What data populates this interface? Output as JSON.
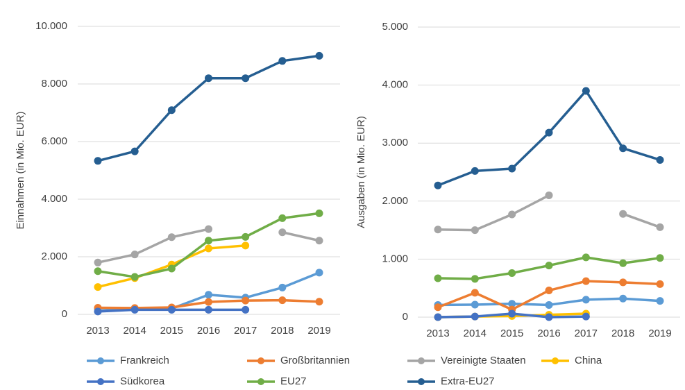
{
  "chart_data": [
    {
      "type": "line",
      "y_label": "Einnahmen (in Mio. EUR)",
      "categories": [
        "2013",
        "2014",
        "2015",
        "2016",
        "2017",
        "2018",
        "2019"
      ],
      "ylim": [
        0,
        10000
      ],
      "yticks": [
        0,
        {
          "value": 2000,
          "label": "2.000"
        },
        {
          "value": 4000,
          "label": "4.000"
        },
        {
          "value": 6000,
          "label": "6.000"
        },
        {
          "value": 8000,
          "label": "8.000"
        },
        {
          "value": 10000,
          "label": "10.000"
        }
      ],
      "grid": true,
      "series": [
        {
          "name": "Frankreich",
          "color": "#5b9bd5",
          "values": [
            200,
            200,
            200,
            680,
            580,
            930,
            1450
          ]
        },
        {
          "name": "Großbritannien",
          "color": "#ed7d31",
          "values": [
            230,
            220,
            240,
            430,
            480,
            490,
            440
          ]
        },
        {
          "name": "Vereinigte Staaten",
          "color": "#a5a5a5",
          "values": [
            1800,
            2080,
            2680,
            2960,
            null,
            2850,
            2560
          ]
        },
        {
          "name": "China",
          "color": "#ffc000",
          "values": [
            950,
            1260,
            1730,
            2290,
            2390,
            null,
            null
          ]
        },
        {
          "name": "Südkorea",
          "color": "#4472c4",
          "values": [
            100,
            160,
            160,
            160,
            160,
            null,
            null
          ]
        },
        {
          "name": "EU27",
          "color": "#70ad47",
          "values": [
            1500,
            1300,
            1590,
            2560,
            2690,
            3340,
            3510
          ]
        },
        {
          "name": "Extra-EU27",
          "color": "#255e91",
          "values": [
            5330,
            5660,
            7090,
            8200,
            8200,
            8800,
            8980
          ]
        }
      ]
    },
    {
      "type": "line",
      "y_label": "Ausgaben (in Mio. EUR)",
      "categories": [
        "2013",
        "2014",
        "2015",
        "2016",
        "2017",
        "2018",
        "2019"
      ],
      "ylim": [
        0,
        5000
      ],
      "yticks": [
        0,
        {
          "value": 1000,
          "label": "1.000"
        },
        {
          "value": 2000,
          "label": "2.000"
        },
        {
          "value": 3000,
          "label": "3.000"
        },
        {
          "value": 4000,
          "label": "4.000"
        },
        {
          "value": 5000,
          "label": "5.000"
        }
      ],
      "grid": true,
      "series": [
        {
          "color": "#5b9bd5",
          "values": [
            210,
            215,
            230,
            210,
            300,
            320,
            280
          ]
        },
        {
          "color": "#ed7d31",
          "values": [
            170,
            420,
            130,
            460,
            620,
            600,
            570
          ]
        },
        {
          "color": "#a5a5a5",
          "values": [
            1510,
            1500,
            1770,
            2100,
            null,
            1780,
            1550
          ]
        },
        {
          "color": "#ffc000",
          "values": [
            0,
            10,
            20,
            40,
            60,
            null,
            null
          ]
        },
        {
          "color": "#4472c4",
          "values": [
            0,
            10,
            60,
            0,
            10,
            null,
            null
          ]
        },
        {
          "color": "#70ad47",
          "values": [
            670,
            660,
            760,
            890,
            1030,
            930,
            1020
          ]
        },
        {
          "color": "#255e91",
          "values": [
            2270,
            2520,
            2560,
            3180,
            3900,
            2910,
            2710
          ]
        }
      ]
    }
  ]
}
